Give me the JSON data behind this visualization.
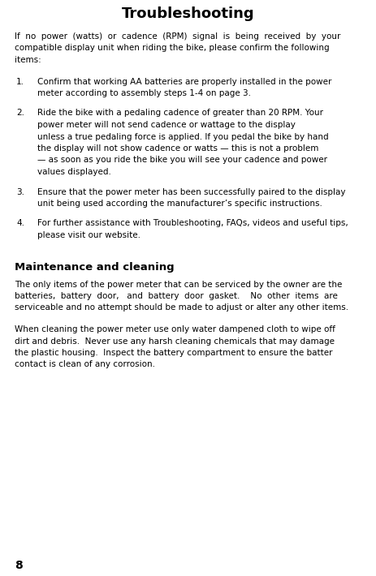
{
  "bg_color": "#ffffff",
  "title": "Troubleshooting",
  "title_fontsize": 13,
  "body_font": "DejaVu Sans",
  "body_fontsize": 7.5,
  "intro_lines": [
    "If  no  power  (watts)  or  cadence  (RPM)  signal  is  being  received  by  your",
    "compatible display unit when riding the bike, please confirm the following",
    "items:"
  ],
  "items": [
    {
      "num": "1.",
      "lines": [
        "Confirm that working AA batteries are properly installed in the power",
        "meter according to assembly steps 1-4 on page 3."
      ]
    },
    {
      "num": "2.",
      "lines": [
        "Ride the bike with a pedaling cadence of greater than 20 RPM. Your",
        "power meter will not send cadence or wattage to the display",
        "unless a true pedaling force is applied. If you pedal the bike by hand",
        "the display will not show cadence or watts — this is not a problem",
        "— as soon as you ride the bike you will see your cadence and power",
        "values displayed."
      ]
    },
    {
      "num": "3.",
      "lines": [
        "Ensure that the power meter has been successfully paired to the display",
        "unit being used according the manufacturer’s specific instructions."
      ]
    },
    {
      "num": "4.",
      "lines": [
        "For further assistance with Troubleshooting, FAQs, videos and useful tips,",
        "please visit our website."
      ]
    }
  ],
  "section2_title": "Maintenance and cleaning",
  "section2_title_fontsize": 9.5,
  "section2_para1_lines": [
    "The only items of the power meter that can be serviced by the owner are the",
    "batteries,  battery  door,   and  battery  door  gasket.    No  other  items  are",
    "serviceable and no attempt should be made to adjust or alter any other items."
  ],
  "section2_para2_lines": [
    "When cleaning the power meter use only water dampened cloth to wipe off",
    "dirt and debris.  Never use any harsh cleaning chemicals that may damage",
    "the plastic housing.  Inspect the battery compartment to ensure the batter",
    "contact is clean of any corrosion."
  ],
  "page_number": "8",
  "page_number_fontsize": 10,
  "text_color": "#000000"
}
